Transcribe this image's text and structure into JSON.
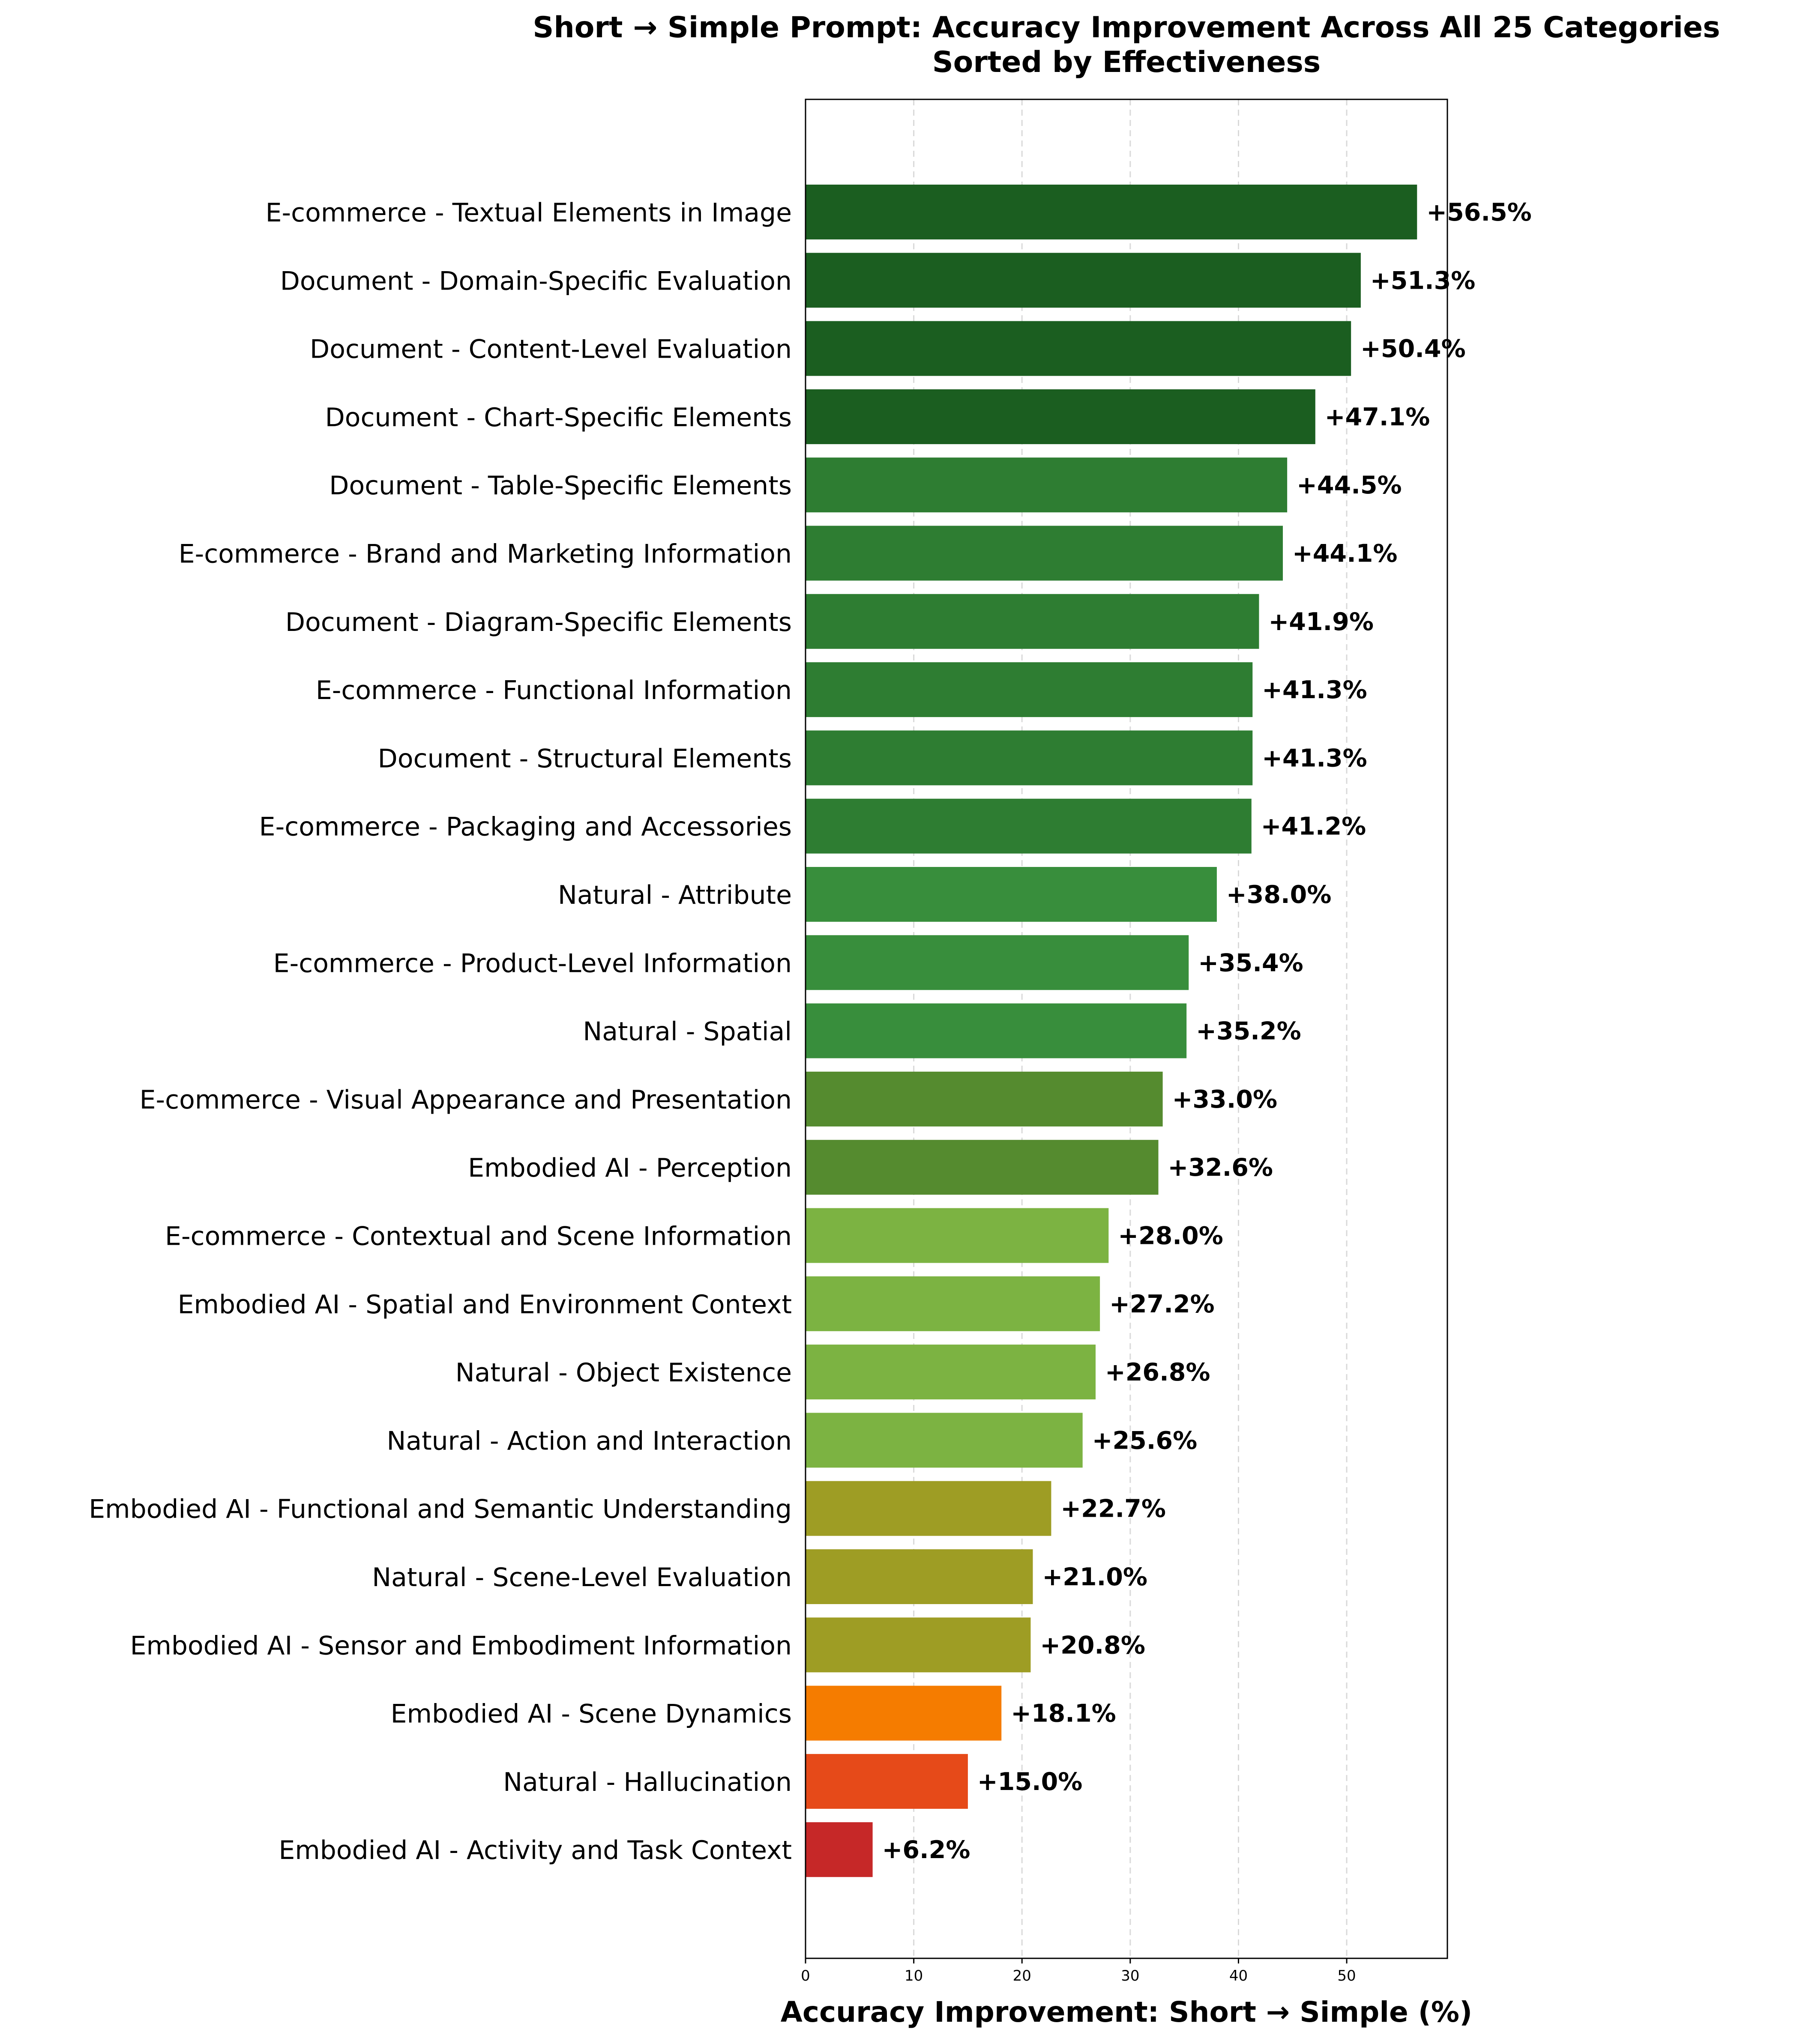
{
  "chart_data": {
    "type": "bar",
    "orientation": "horizontal",
    "title": "Short → Simple Prompt: Accuracy Improvement Across All 25 Categories",
    "subtitle": "Sorted by Effectiveness",
    "xlabel": "Accuracy Improvement: Short → Simple (%)",
    "ylabel": "",
    "xlim": [
      0,
      59.3
    ],
    "xticks": [
      0,
      10,
      20,
      30,
      40,
      50
    ],
    "grid": "x-dashed",
    "categories": [
      "E-commerce - Textual Elements in Image",
      "Document - Domain-Specific Evaluation",
      "Document - Content-Level Evaluation",
      "Document - Chart-Specific Elements",
      "Document - Table-Specific Elements",
      "E-commerce - Brand and Marketing Information",
      "Document - Diagram-Specific Elements",
      "E-commerce - Functional Information",
      "Document - Structural Elements",
      "E-commerce - Packaging and Accessories",
      "Natural - Attribute",
      "E-commerce - Product-Level Information",
      "Natural - Spatial",
      "E-commerce - Visual Appearance and Presentation",
      "Embodied AI - Perception",
      "E-commerce - Contextual and Scene Information",
      "Embodied AI - Spatial and Environment Context",
      "Natural - Object Existence",
      "Natural - Action and Interaction",
      "Embodied AI - Functional and Semantic Understanding",
      "Natural - Scene-Level Evaluation",
      "Embodied AI - Sensor and Embodiment Information",
      "Embodied AI - Scene Dynamics",
      "Natural - Hallucination",
      "Embodied AI - Activity and Task Context"
    ],
    "values": [
      56.5,
      51.3,
      50.4,
      47.1,
      44.5,
      44.1,
      41.9,
      41.3,
      41.3,
      41.2,
      38.0,
      35.4,
      35.2,
      33.0,
      32.6,
      28.0,
      27.2,
      26.8,
      25.6,
      22.7,
      21.0,
      20.8,
      18.1,
      15.0,
      6.2
    ],
    "value_labels": [
      "+56.5%",
      "+51.3%",
      "+50.4%",
      "+47.1%",
      "+44.5%",
      "+44.1%",
      "+41.9%",
      "+41.3%",
      "+41.3%",
      "+41.2%",
      "+38.0%",
      "+35.4%",
      "+35.2%",
      "+33.0%",
      "+32.6%",
      "+28.0%",
      "+27.2%",
      "+26.8%",
      "+25.6%",
      "+22.7%",
      "+21.0%",
      "+20.8%",
      "+18.1%",
      "+15.0%",
      "+6.2%"
    ],
    "colors": [
      "#1b5e20",
      "#1b5e20",
      "#1b5e20",
      "#1b5e20",
      "#2e7d32",
      "#2e7d32",
      "#2e7d32",
      "#2e7d32",
      "#2e7d32",
      "#2e7d32",
      "#388e3c",
      "#388e3c",
      "#388e3c",
      "#558b2f",
      "#558b2f",
      "#7cb342",
      "#7cb342",
      "#7cb342",
      "#7cb342",
      "#9e9d24",
      "#9e9d24",
      "#9e9d24",
      "#f57c00",
      "#e64a19",
      "#c62828"
    ]
  }
}
